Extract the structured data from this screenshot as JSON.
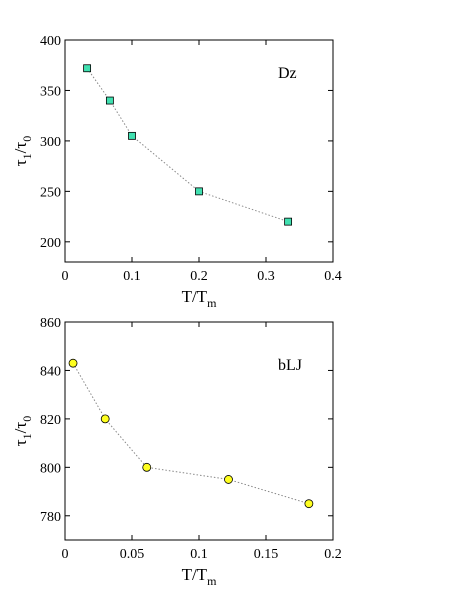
{
  "chart_data": [
    {
      "type": "scatter",
      "annotation": "Dz",
      "xlabel": {
        "main": "T/T",
        "sub": "m"
      },
      "ylabel": {
        "main": "τ",
        "sub1": "1",
        "mid": "/τ",
        "sub2": "0"
      },
      "xlim": [
        0,
        0.4
      ],
      "ylim": [
        180,
        400
      ],
      "xticks": [
        0,
        0.1,
        0.2,
        0.3,
        0.4
      ],
      "xtick_labels": [
        "0",
        "0.1",
        "0.2",
        "0.3",
        "0.4"
      ],
      "yticks": [
        200,
        250,
        300,
        350,
        400
      ],
      "ytick_labels": [
        "200",
        "250",
        "300",
        "350",
        "400"
      ],
      "grid": false,
      "series": [
        {
          "marker": "square",
          "color": "#40e0b0",
          "line_style": "dotted",
          "line_color": "#888888",
          "x": [
            0.033,
            0.067,
            0.1,
            0.2,
            0.333
          ],
          "y": [
            372,
            340,
            305,
            250,
            220
          ]
        }
      ]
    },
    {
      "type": "scatter",
      "annotation": "bLJ",
      "xlabel": {
        "main": "T/T",
        "sub": "m"
      },
      "ylabel": {
        "main": "τ",
        "sub1": "1",
        "mid": "/τ",
        "sub2": "0"
      },
      "xlim": [
        0,
        0.2
      ],
      "ylim": [
        770,
        860
      ],
      "xticks": [
        0,
        0.05,
        0.1,
        0.15,
        0.2
      ],
      "xtick_labels": [
        "0",
        "0.05",
        "0.1",
        "0.15",
        "0.2"
      ],
      "yticks": [
        780,
        800,
        820,
        840,
        860
      ],
      "ytick_labels": [
        "780",
        "800",
        "820",
        "840",
        "860"
      ],
      "grid": false,
      "series": [
        {
          "marker": "circle",
          "color": "#ffff20",
          "line_style": "dotted",
          "line_color": "#888888",
          "x": [
            0.006,
            0.03,
            0.061,
            0.122,
            0.182
          ],
          "y": [
            843,
            820,
            800,
            795,
            785
          ]
        }
      ]
    }
  ]
}
